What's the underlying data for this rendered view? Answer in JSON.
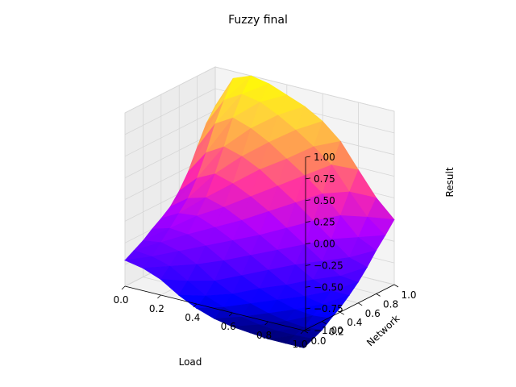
{
  "chart_data": {
    "type": "surface3d",
    "title": "Fuzzy final",
    "xlabel": "Load",
    "ylabel": "Network",
    "zlabel": "Result",
    "xlim": [
      0.0,
      1.0
    ],
    "ylim": [
      0.0,
      1.0
    ],
    "zlim": [
      -1.0,
      1.0
    ],
    "x_ticks": [
      "0.0",
      "0.2",
      "0.4",
      "0.6",
      "0.8",
      "1.0"
    ],
    "y_ticks": [
      "0.0",
      "0.2",
      "0.4",
      "0.6",
      "0.8",
      "1.0"
    ],
    "z_ticks": [
      "−1.00",
      "−0.75",
      "−0.50",
      "−0.25",
      "0.00",
      "0.25",
      "0.50",
      "0.75",
      "1.00"
    ],
    "colormap": [
      "#0000ff",
      "#5a00ff",
      "#b000ff",
      "#ff2aa8",
      "#ff8a5a",
      "#ffd23c",
      "#ffff00"
    ],
    "grid": true,
    "x": [
      0.0,
      0.1,
      0.2,
      0.3,
      0.4,
      0.5,
      0.6,
      0.7,
      0.8,
      0.9,
      1.0
    ],
    "y": [
      0.0,
      0.1,
      0.2,
      0.3,
      0.4,
      0.5,
      0.6,
      0.7,
      0.8,
      0.9,
      1.0
    ],
    "z": [
      [
        -0.7,
        -0.64,
        -0.58,
        -0.5,
        -0.43,
        -0.35,
        -0.22,
        -0.05,
        0.18,
        0.4,
        0.55
      ],
      [
        -0.74,
        -0.66,
        -0.55,
        -0.44,
        -0.32,
        -0.2,
        -0.02,
        0.22,
        0.5,
        0.72,
        0.92
      ],
      [
        -0.82,
        -0.72,
        -0.6,
        -0.46,
        -0.3,
        -0.14,
        0.08,
        0.34,
        0.62,
        0.84,
        1.0
      ],
      [
        -0.95,
        -0.84,
        -0.7,
        -0.54,
        -0.38,
        -0.2,
        0.02,
        0.28,
        0.55,
        0.8,
        0.96
      ],
      [
        -1.05,
        -0.96,
        -0.84,
        -0.66,
        -0.48,
        -0.3,
        -0.08,
        0.18,
        0.44,
        0.7,
        0.88
      ],
      [
        -1.12,
        -1.04,
        -0.94,
        -0.78,
        -0.6,
        -0.42,
        -0.2,
        0.04,
        0.3,
        0.58,
        0.8
      ],
      [
        -1.16,
        -1.1,
        -1.0,
        -0.88,
        -0.72,
        -0.54,
        -0.34,
        -0.1,
        0.16,
        0.44,
        0.68
      ],
      [
        -1.18,
        -1.14,
        -1.06,
        -0.96,
        -0.84,
        -0.66,
        -0.48,
        -0.26,
        0.0,
        0.28,
        0.5
      ],
      [
        -1.2,
        -1.16,
        -1.1,
        -1.02,
        -0.92,
        -0.78,
        -0.62,
        -0.42,
        -0.2,
        0.02,
        0.22
      ],
      [
        -1.2,
        -1.16,
        -1.12,
        -1.04,
        -0.96,
        -0.86,
        -0.74,
        -0.58,
        -0.4,
        -0.22,
        -0.05
      ],
      [
        -1.2,
        -1.15,
        -1.1,
        -1.02,
        -0.95,
        -0.86,
        -0.76,
        -0.64,
        -0.5,
        -0.38,
        -0.25
      ]
    ]
  }
}
